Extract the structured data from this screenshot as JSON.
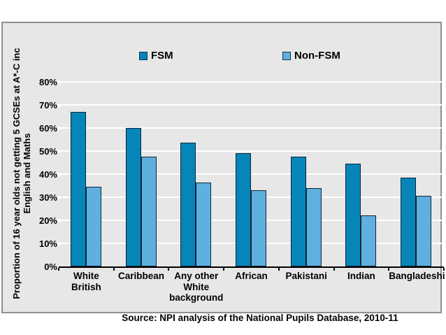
{
  "chart_data": {
    "type": "bar",
    "title": "",
    "categories": [
      "White British",
      "Caribbean",
      "Any other White background",
      "African",
      "Pakistani",
      "Indian",
      "Bangladeshi"
    ],
    "series": [
      {
        "name": "FSM",
        "color": "#0685b9",
        "values": [
          67,
          60,
          53.5,
          49,
          47.5,
          44.5,
          38.5
        ]
      },
      {
        "name": "Non-FSM",
        "color": "#5fafdf",
        "values": [
          34.5,
          47.5,
          36.5,
          33,
          34,
          22,
          30.5
        ]
      }
    ],
    "ylabel_line1": "Proportion of 16 year olds not getting 5 GCSEs at A*-C inc",
    "ylabel_line2": "English and Maths",
    "xlabel": "",
    "y_tick_labels": [
      "0%",
      "10%",
      "20%",
      "30%",
      "40%",
      "50%",
      "60%",
      "70%",
      "80%"
    ],
    "y_tick_values": [
      0,
      10,
      20,
      30,
      40,
      50,
      60,
      70,
      80
    ],
    "ylim": [
      0,
      80
    ],
    "grid": "horizontal-white",
    "legend_position": "top",
    "source": "Source: NPI analysis of the National Pupils Database, 2010-11"
  },
  "colors": {
    "panel_background": "#e7e7e7",
    "panel_border": "#8f8f8f",
    "page_background": "#ffffff",
    "gridline": "#ffffff",
    "bar_outline": "#0e2538",
    "axis": "#000000",
    "text": "#000000"
  }
}
